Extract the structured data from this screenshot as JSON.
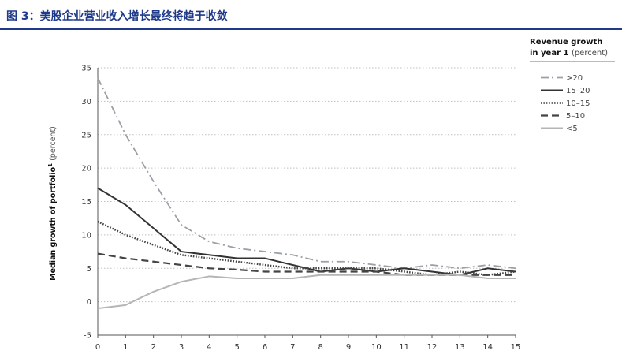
{
  "header": {
    "title": "图 3：美股企业营业收入增长最终将趋于收敛"
  },
  "chart_data": {
    "type": "line",
    "ylabel": "Median growth of portfolio",
    "ylabel_sup": "1",
    "ylabel_unit": "(percent)",
    "xlabel": "",
    "x": [
      0,
      1,
      2,
      3,
      4,
      5,
      6,
      7,
      8,
      9,
      10,
      11,
      12,
      13,
      14,
      15
    ],
    "xlim": [
      0,
      15
    ],
    "ylim": [
      -5,
      35
    ],
    "yticks": [
      -5,
      0,
      5,
      10,
      15,
      20,
      25,
      30,
      35
    ],
    "grid": "horizontal dotted",
    "legend": {
      "title_bold": "Revenue growth in year 1",
      "title_unit": "(percent)",
      "placement": "top-right"
    },
    "series": [
      {
        "name": ">20",
        "style": "dashdot",
        "color": "#9aa0a6",
        "values": [
          33.5,
          25,
          18,
          11.5,
          9,
          8,
          7.5,
          7,
          6,
          6,
          5.5,
          5,
          5.5,
          5,
          5.5,
          5
        ]
      },
      {
        "name": "15–20",
        "style": "solid",
        "color": "#333333",
        "values": [
          17,
          14.5,
          11,
          7.5,
          7,
          6.5,
          6.5,
          5.5,
          4.5,
          5,
          4.5,
          5,
          4.5,
          4,
          5,
          4.5
        ]
      },
      {
        "name": "10–15",
        "style": "dotted",
        "color": "#444444",
        "values": [
          12,
          10,
          8.5,
          7,
          6.5,
          6,
          5.5,
          5,
          5,
          5,
          5,
          4.5,
          4,
          4.5,
          4,
          4.5
        ]
      },
      {
        "name": "5–10",
        "style": "dashed",
        "color": "#444444",
        "values": [
          7.2,
          6.5,
          6,
          5.5,
          5,
          4.8,
          4.5,
          4.5,
          4.5,
          4.5,
          4.5,
          4,
          4,
          4,
          4,
          4
        ]
      },
      {
        "name": "<5",
        "style": "solid",
        "color": "#b5b5b5",
        "values": [
          -1,
          -0.5,
          1.5,
          3,
          3.8,
          3.5,
          3.5,
          3.5,
          4,
          4,
          4,
          4,
          4,
          4,
          3.5,
          3.5
        ]
      }
    ]
  }
}
